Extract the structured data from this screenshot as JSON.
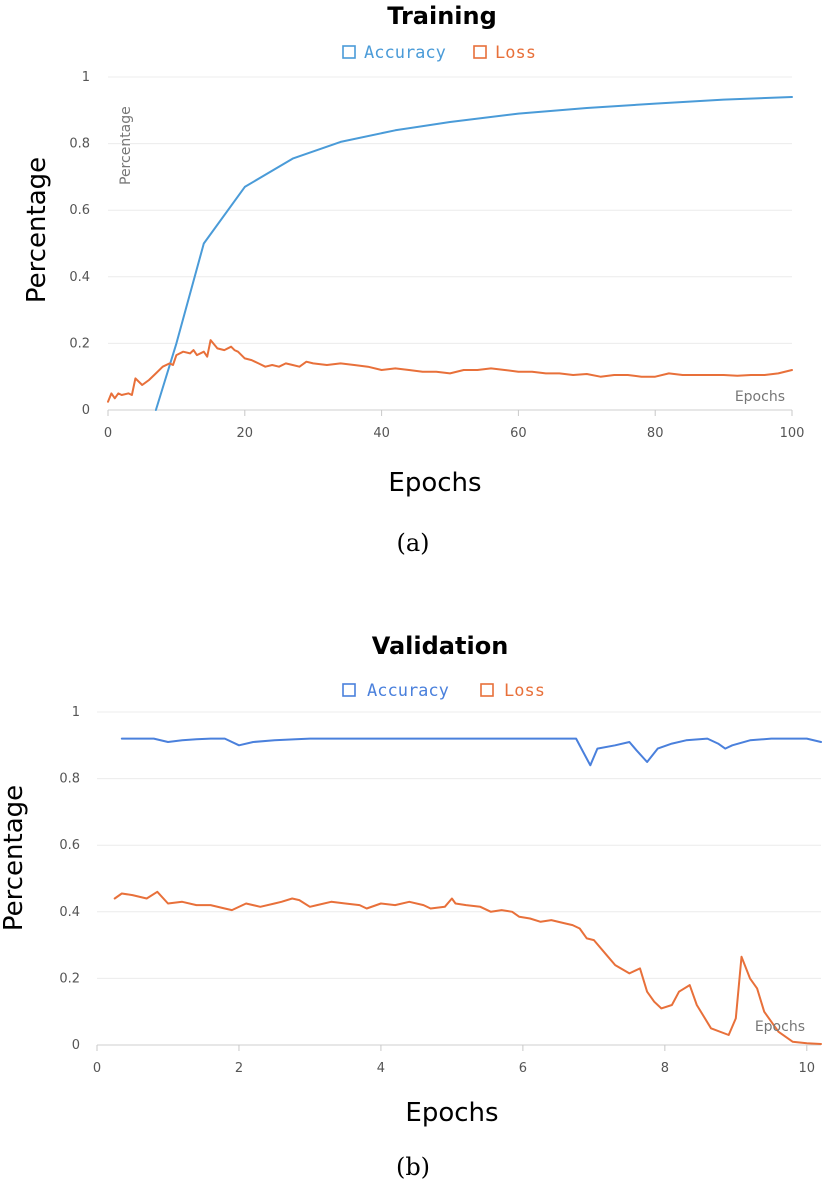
{
  "chart_data": [
    {
      "type": "line",
      "title": "Training",
      "xlabel": "Epochs",
      "ylabel": "Percentage",
      "inner_xlabel": "Epochs",
      "inner_ylabel": "Percentage",
      "caption": "(a)",
      "xlim": [
        0,
        100
      ],
      "ylim": [
        0,
        1
      ],
      "x_ticks": [
        "0",
        "20",
        "40",
        "60",
        "80",
        "100"
      ],
      "y_ticks": [
        "0",
        "0.2",
        "0.4",
        "0.6",
        "0.8",
        "1"
      ],
      "grid": true,
      "legend_position": "top-center",
      "series": [
        {
          "name": "Accuracy",
          "color": "#4a9bd8",
          "x": [
            7,
            10,
            14,
            20,
            27,
            34,
            42,
            50,
            60,
            70,
            80,
            90,
            100
          ],
          "y": [
            0.0,
            0.2,
            0.5,
            0.67,
            0.755,
            0.805,
            0.84,
            0.865,
            0.89,
            0.907,
            0.92,
            0.932,
            0.94
          ]
        },
        {
          "name": "Loss",
          "color": "#e8703a",
          "x": [
            0,
            0.5,
            1,
            1.5,
            2,
            3,
            3.5,
            4,
            5,
            6,
            7,
            8,
            9,
            9.5,
            10,
            11,
            12,
            12.5,
            13,
            14,
            14.5,
            15,
            16,
            17,
            18,
            18.5,
            19,
            20,
            21,
            22,
            23,
            24,
            25,
            26,
            27,
            28,
            29,
            30,
            32,
            34,
            36,
            38,
            40,
            42,
            44,
            46,
            48,
            50,
            52,
            54,
            56,
            58,
            60,
            62,
            64,
            66,
            68,
            70,
            72,
            74,
            76,
            78,
            80,
            82,
            84,
            86,
            88,
            90,
            92,
            94,
            96,
            98,
            100
          ],
          "y": [
            0.025,
            0.05,
            0.035,
            0.05,
            0.045,
            0.05,
            0.045,
            0.095,
            0.075,
            0.09,
            0.11,
            0.13,
            0.14,
            0.135,
            0.165,
            0.175,
            0.17,
            0.18,
            0.165,
            0.175,
            0.16,
            0.21,
            0.185,
            0.18,
            0.19,
            0.18,
            0.175,
            0.155,
            0.15,
            0.14,
            0.13,
            0.135,
            0.13,
            0.14,
            0.135,
            0.13,
            0.145,
            0.14,
            0.135,
            0.14,
            0.135,
            0.13,
            0.12,
            0.125,
            0.12,
            0.115,
            0.115,
            0.11,
            0.12,
            0.12,
            0.125,
            0.12,
            0.115,
            0.115,
            0.11,
            0.11,
            0.105,
            0.108,
            0.1,
            0.105,
            0.105,
            0.1,
            0.1,
            0.11,
            0.105,
            0.105,
            0.105,
            0.105,
            0.103,
            0.105,
            0.105,
            0.11,
            0.12
          ]
        }
      ]
    },
    {
      "type": "line",
      "title": "Validation",
      "xlabel": "Epochs",
      "ylabel": "Percentage",
      "inner_xlabel": "Epochs",
      "inner_ylabel": "",
      "caption": "(b)",
      "xlim": [
        0,
        10.2
      ],
      "ylim": [
        0,
        1
      ],
      "x_ticks": [
        "0",
        "2",
        "4",
        "6",
        "8",
        "10"
      ],
      "y_ticks": [
        "0",
        "0.2",
        "0.4",
        "0.6",
        "0.8",
        "1"
      ],
      "grid": true,
      "legend_position": "top-center",
      "series": [
        {
          "name": "Accuracy",
          "color": "#4a80dc",
          "x": [
            0.35,
            0.5,
            0.8,
            1.0,
            1.2,
            1.4,
            1.6,
            1.8,
            2.0,
            2.2,
            2.5,
            2.8,
            3.0,
            3.5,
            4.0,
            5.0,
            6.0,
            6.6,
            6.75,
            6.85,
            6.95,
            7.05,
            7.3,
            7.5,
            7.6,
            7.75,
            7.9,
            8.1,
            8.3,
            8.6,
            8.75,
            8.85,
            8.95,
            9.2,
            9.5,
            10.0,
            10.2
          ],
          "y": [
            0.92,
            0.92,
            0.92,
            0.91,
            0.915,
            0.918,
            0.92,
            0.92,
            0.9,
            0.91,
            0.915,
            0.918,
            0.92,
            0.92,
            0.92,
            0.92,
            0.92,
            0.92,
            0.92,
            0.88,
            0.84,
            0.89,
            0.9,
            0.91,
            0.885,
            0.85,
            0.89,
            0.905,
            0.915,
            0.92,
            0.905,
            0.89,
            0.9,
            0.915,
            0.92,
            0.92,
            0.91
          ]
        },
        {
          "name": "Loss",
          "color": "#e8703a",
          "x": [
            0.25,
            0.35,
            0.5,
            0.7,
            0.85,
            1.0,
            1.2,
            1.4,
            1.6,
            1.8,
            1.9,
            2.1,
            2.3,
            2.5,
            2.6,
            2.75,
            2.85,
            3.0,
            3.1,
            3.3,
            3.5,
            3.7,
            3.8,
            4.0,
            4.2,
            4.4,
            4.6,
            4.7,
            4.9,
            5.0,
            5.05,
            5.2,
            5.4,
            5.55,
            5.7,
            5.85,
            5.95,
            6.1,
            6.25,
            6.4,
            6.6,
            6.7,
            6.8,
            6.9,
            7.0,
            7.2,
            7.3,
            7.5,
            7.65,
            7.75,
            7.85,
            7.95,
            8.1,
            8.2,
            8.35,
            8.45,
            8.65,
            8.9,
            9.0,
            9.08,
            9.2,
            9.3,
            9.4,
            9.6,
            9.8,
            10.0,
            10.2
          ],
          "y": [
            0.44,
            0.455,
            0.45,
            0.44,
            0.46,
            0.425,
            0.43,
            0.42,
            0.42,
            0.41,
            0.405,
            0.425,
            0.415,
            0.425,
            0.43,
            0.44,
            0.435,
            0.415,
            0.42,
            0.43,
            0.425,
            0.42,
            0.41,
            0.425,
            0.42,
            0.43,
            0.42,
            0.41,
            0.415,
            0.44,
            0.425,
            0.42,
            0.415,
            0.4,
            0.405,
            0.4,
            0.385,
            0.38,
            0.37,
            0.375,
            0.365,
            0.36,
            0.35,
            0.32,
            0.315,
            0.265,
            0.24,
            0.215,
            0.23,
            0.16,
            0.13,
            0.11,
            0.12,
            0.16,
            0.18,
            0.12,
            0.05,
            0.03,
            0.08,
            0.265,
            0.2,
            0.17,
            0.1,
            0.04,
            0.01,
            0.005,
            0.003
          ]
        }
      ]
    }
  ]
}
